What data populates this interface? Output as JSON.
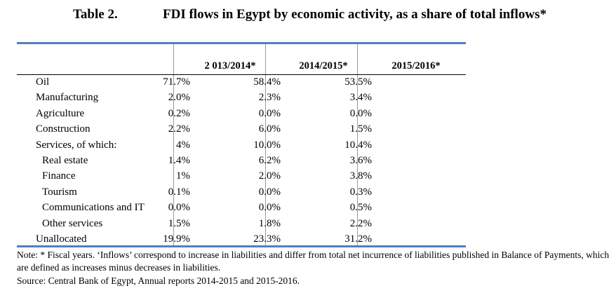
{
  "caption": {
    "number": "Table 2.",
    "title": "FDI flows in Egypt by economic activity, as a share of total inflows*"
  },
  "table": {
    "columns": [
      "2 013/2014*",
      "2014/2015*",
      "2015/2016*"
    ],
    "rows": [
      {
        "label": "Oil",
        "values": [
          "71.7%",
          "58.4%",
          "53.5%"
        ]
      },
      {
        "label": "Manufacturing",
        "values": [
          "2.0%",
          "2.3%",
          "3.4%"
        ]
      },
      {
        "label": "Agriculture",
        "values": [
          "0.2%",
          "0.0%",
          "0.0%"
        ]
      },
      {
        "label": "Construction",
        "values": [
          "2.2%",
          "6.0%",
          "1.5%"
        ]
      },
      {
        "label": "Services, of which:",
        "values": [
          "4%",
          "10.0%",
          "10.4%"
        ]
      },
      {
        "label": "Real estate",
        "values": [
          "1.4%",
          "6.2%",
          "3.6%"
        ]
      },
      {
        "label": "Finance",
        "values": [
          "1%",
          "2.0%",
          "3.8%"
        ]
      },
      {
        "label": "Tourism",
        "values": [
          "0.1%",
          "0.0%",
          "0.3%"
        ]
      },
      {
        "label": "Communications and IT",
        "values": [
          "0.0%",
          "0.0%",
          "0.5%"
        ]
      },
      {
        "label": "Other services",
        "values": [
          "1.5%",
          "1.8%",
          "2.2%"
        ]
      },
      {
        "label": "Unallocated",
        "values": [
          "19.9%",
          "23.3%",
          "31.2%"
        ]
      }
    ]
  },
  "note": "Note: * Fiscal years. ‘Inflows’ correspond to increase in liabilities and differ from total net incurrence of liabilities published in Balance of Payments, which are defined as increases minus decreases in liabilities.",
  "source": "Source: Central Bank of Egypt, Annual reports 2014-2015 and 2015-2016.",
  "colors": {
    "rule": "#4f81bd"
  }
}
